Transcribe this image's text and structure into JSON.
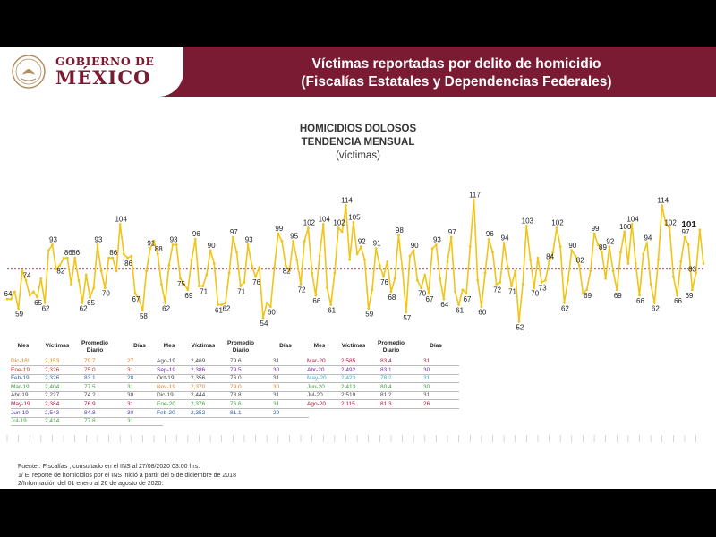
{
  "header": {
    "gov_line1": "GOBIERNO DE",
    "gov_line2": "MÉXICO",
    "title_line1": "Víctimas reportadas por delito de homicidio",
    "title_line2": "(Fiscalías Estatales y Dependencias Federales)"
  },
  "subtitle": {
    "line1": "HOMICIDIOS DOLOSOS",
    "line2": "TENDENCIA MENSUAL",
    "line3": "(víctimas)"
  },
  "colors": {
    "header_bg": "#7a1b33",
    "line": "#f0c419",
    "average_line": "#8b1a2e"
  },
  "chart_data": {
    "type": "line",
    "title": "HOMICIDIOS DOLOSOS TENDENCIA MENSUAL",
    "ylabel": "víctimas",
    "ylim": [
      45,
      120
    ],
    "annotated_points": [
      {
        "i": 0,
        "v": 64
      },
      {
        "i": 3,
        "v": 59
      },
      {
        "i": 5,
        "v": 74
      },
      {
        "i": 8,
        "v": 65
      },
      {
        "i": 10,
        "v": 62
      },
      {
        "i": 12,
        "v": 93
      },
      {
        "i": 14,
        "v": 82
      },
      {
        "i": 16,
        "v": 86
      },
      {
        "i": 18,
        "v": 86
      },
      {
        "i": 20,
        "v": 62
      },
      {
        "i": 22,
        "v": 65
      },
      {
        "i": 24,
        "v": 93
      },
      {
        "i": 26,
        "v": 70
      },
      {
        "i": 28,
        "v": 86
      },
      {
        "i": 30,
        "v": 104
      },
      {
        "i": 32,
        "v": 86
      },
      {
        "i": 34,
        "v": 67
      },
      {
        "i": 36,
        "v": 58
      },
      {
        "i": 38,
        "v": 91
      },
      {
        "i": 40,
        "v": 88
      },
      {
        "i": 42,
        "v": 62
      },
      {
        "i": 44,
        "v": 93
      },
      {
        "i": 46,
        "v": 75
      },
      {
        "i": 48,
        "v": 69
      },
      {
        "i": 50,
        "v": 96
      },
      {
        "i": 52,
        "v": 71
      },
      {
        "i": 54,
        "v": 90
      },
      {
        "i": 56,
        "v": 61
      },
      {
        "i": 58,
        "v": 62
      },
      {
        "i": 60,
        "v": 97
      },
      {
        "i": 62,
        "v": 71
      },
      {
        "i": 64,
        "v": 93
      },
      {
        "i": 66,
        "v": 76
      },
      {
        "i": 68,
        "v": 54
      },
      {
        "i": 70,
        "v": 60
      },
      {
        "i": 72,
        "v": 99
      },
      {
        "i": 74,
        "v": 82
      },
      {
        "i": 76,
        "v": 95
      },
      {
        "i": 78,
        "v": 72
      },
      {
        "i": 80,
        "v": 102
      },
      {
        "i": 82,
        "v": 66
      },
      {
        "i": 84,
        "v": 104
      },
      {
        "i": 86,
        "v": 61
      },
      {
        "i": 88,
        "v": 102
      },
      {
        "i": 90,
        "v": 114
      },
      {
        "i": 92,
        "v": 105
      },
      {
        "i": 94,
        "v": 92
      },
      {
        "i": 96,
        "v": 59
      },
      {
        "i": 98,
        "v": 91
      },
      {
        "i": 100,
        "v": 76
      },
      {
        "i": 102,
        "v": 68
      },
      {
        "i": 104,
        "v": 98
      },
      {
        "i": 106,
        "v": 57
      },
      {
        "i": 108,
        "v": 90
      },
      {
        "i": 110,
        "v": 70
      },
      {
        "i": 112,
        "v": 67
      },
      {
        "i": 114,
        "v": 93
      },
      {
        "i": 116,
        "v": 64
      },
      {
        "i": 118,
        "v": 97
      },
      {
        "i": 120,
        "v": 61
      },
      {
        "i": 122,
        "v": 67
      },
      {
        "i": 124,
        "v": 117
      },
      {
        "i": 126,
        "v": 60
      },
      {
        "i": 128,
        "v": 96
      },
      {
        "i": 130,
        "v": 72
      },
      {
        "i": 132,
        "v": 94
      },
      {
        "i": 134,
        "v": 71
      },
      {
        "i": 136,
        "v": 52
      },
      {
        "i": 138,
        "v": 103
      },
      {
        "i": 140,
        "v": 70
      },
      {
        "i": 142,
        "v": 73
      },
      {
        "i": 144,
        "v": 84
      },
      {
        "i": 146,
        "v": 102
      },
      {
        "i": 148,
        "v": 62
      },
      {
        "i": 150,
        "v": 90
      },
      {
        "i": 152,
        "v": 82
      },
      {
        "i": 154,
        "v": 69
      },
      {
        "i": 156,
        "v": 99
      },
      {
        "i": 158,
        "v": 89
      },
      {
        "i": 160,
        "v": 92
      },
      {
        "i": 162,
        "v": 69
      },
      {
        "i": 164,
        "v": 100
      },
      {
        "i": 166,
        "v": 104
      },
      {
        "i": 168,
        "v": 66
      },
      {
        "i": 170,
        "v": 94
      },
      {
        "i": 172,
        "v": 62
      },
      {
        "i": 174,
        "v": 114
      },
      {
        "i": 176,
        "v": 102
      },
      {
        "i": 178,
        "v": 66
      },
      {
        "i": 180,
        "v": 97
      },
      {
        "i": 182,
        "v": 69
      },
      {
        "i": 184,
        "v": 101
      },
      {
        "i": 185,
        "v": 83
      }
    ],
    "average_line": 80
  },
  "tables": [
    {
      "headers": [
        "Mes",
        "Víctimas",
        "Promedio Diario",
        "Días"
      ],
      "rows": [
        {
          "mes": "Dic-18¹",
          "victimas": "2,153",
          "promedio": "79.7",
          "dias": "27",
          "color": "#d9822b"
        },
        {
          "mes": "Ene-19",
          "victimas": "2,326",
          "promedio": "75.0",
          "dias": "31",
          "color": "#c0392b"
        },
        {
          "mes": "Feb-19",
          "victimas": "2,326",
          "promedio": "83.1",
          "dias": "28",
          "color": "#2b5fa8"
        },
        {
          "mes": "Mar-19",
          "victimas": "2,404",
          "promedio": "77.5",
          "dias": "31",
          "color": "#3f9e3f"
        },
        {
          "mes": "Abr-19",
          "victimas": "2,227",
          "promedio": "74.2",
          "dias": "30",
          "color": "#444444"
        },
        {
          "mes": "May-19",
          "victimas": "2,384",
          "promedio": "76.9",
          "dias": "31",
          "color": "#a3183a"
        },
        {
          "mes": "Jun-19",
          "victimas": "2,543",
          "promedio": "84.8",
          "dias": "30",
          "color": "#4a3aa8"
        },
        {
          "mes": "Jul-19",
          "victimas": "2,414",
          "promedio": "77.8",
          "dias": "31",
          "color": "#3f9e3f"
        }
      ]
    },
    {
      "headers": [
        "Mes",
        "Víctimas",
        "Promedio Diario",
        "Días"
      ],
      "rows": [
        {
          "mes": "Ago-19",
          "victimas": "2,469",
          "promedio": "79.6",
          "dias": "31",
          "color": "#444444"
        },
        {
          "mes": "Sep-19",
          "victimas": "2,386",
          "promedio": "79.5",
          "dias": "30",
          "color": "#6a2aa8"
        },
        {
          "mes": "Oct-19",
          "victimas": "2,356",
          "promedio": "76.0",
          "dias": "31",
          "color": "#444444"
        },
        {
          "mes": "Nov-19",
          "victimas": "2,370",
          "promedio": "79.0",
          "dias": "30",
          "color": "#d9822b"
        },
        {
          "mes": "Dic-19",
          "victimas": "2,444",
          "promedio": "78.8",
          "dias": "31",
          "color": "#444444"
        },
        {
          "mes": "Ene-20",
          "victimas": "2,376",
          "promedio": "76.6",
          "dias": "31",
          "color": "#3f9e3f"
        },
        {
          "mes": "Feb-20",
          "victimas": "2,352",
          "promedio": "81.1",
          "dias": "29",
          "color": "#2b5fa8"
        }
      ]
    },
    {
      "headers": [
        "Mes",
        "Víctimas",
        "Promedio Diario",
        "Días"
      ],
      "rows": [
        {
          "mes": "Mar-20",
          "victimas": "2,585",
          "promedio": "83.4",
          "dias": "31",
          "color": "#a3183a"
        },
        {
          "mes": "Abr-20",
          "victimas": "2,492",
          "promedio": "83.1",
          "dias": "30",
          "color": "#6a2aa8"
        },
        {
          "mes": "May-20",
          "victimas": "2,423",
          "promedio": "78.2",
          "dias": "31",
          "color": "#3aa8c8"
        },
        {
          "mes": "Jun-20",
          "victimas": "2,413",
          "promedio": "80.4",
          "dias": "30",
          "color": "#3f9e3f"
        },
        {
          "mes": "Jul-20",
          "victimas": "2,519",
          "promedio": "81.2",
          "dias": "31",
          "color": "#444444"
        },
        {
          "mes": "Ago-20",
          "victimas": "2,115",
          "promedio": "81.3",
          "dias": "26",
          "color": "#a3183a"
        }
      ]
    }
  ],
  "footnotes": {
    "line1": "Fuente : Fiscalías , consultado en el INS al 27/08/2020 03:00 hrs.",
    "line2": "1/ El reporte de homicidios por el INS inició a partir del 5 de diciembre de 2018",
    "line3": "2/Información del 01 enero al 26 de agosto de 2020."
  }
}
